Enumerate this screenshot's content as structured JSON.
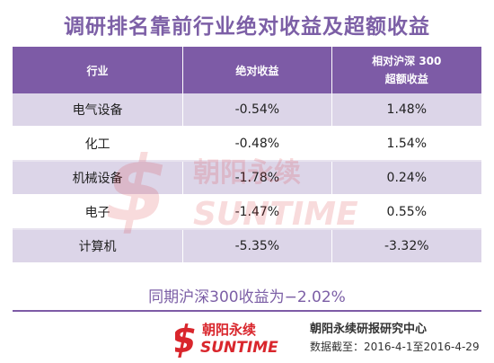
{
  "title": "调研排名靠前行业绝对收益及超额收益",
  "table": {
    "headers": [
      "行业",
      "绝对收益",
      "相对沪深 300",
      "超额收益"
    ],
    "rows": [
      {
        "industry": "电气设备",
        "absolute": "-0.54%",
        "excess": "1.48%"
      },
      {
        "industry": "化工",
        "absolute": "-0.48%",
        "excess": "1.54%"
      },
      {
        "industry": "机械设备",
        "absolute": "-1.78%",
        "excess": "0.24%"
      },
      {
        "industry": "电子",
        "absolute": "-1.47%",
        "excess": "0.55%"
      },
      {
        "industry": "计算机",
        "absolute": "-5.35%",
        "excess": "-3.32%"
      }
    ]
  },
  "note": "同期沪深300收益为−2.02%",
  "logo": {
    "cn": "朝阳永续",
    "en": "SUNTIME"
  },
  "footer": {
    "org": "朝阳永续研报研究中心",
    "date": "数据截至：2016-4-1至2016-4-29"
  },
  "colors": {
    "accent": "#7d5ba6",
    "row_alt": "#dcd5e8",
    "logo_red": "#d9262c"
  }
}
